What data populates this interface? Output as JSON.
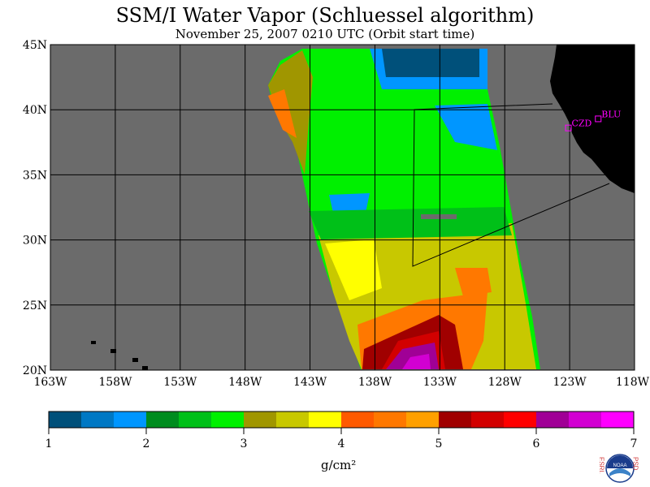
{
  "title": "SSM/I Water Vapor (Schluessel algorithm)",
  "subtitle": "November 25, 2007  0210 UTC  (Orbit start time)",
  "map": {
    "lon_range": [
      -163,
      -118
    ],
    "lat_range": [
      20,
      45
    ],
    "lat_labels": [
      "45N",
      "40N",
      "35N",
      "30N",
      "25N",
      "20N"
    ],
    "lon_labels": [
      "163W",
      "158W",
      "153W",
      "148W",
      "143W",
      "138W",
      "133W",
      "128W",
      "123W",
      "118W"
    ],
    "sites": [
      {
        "code": "CZD",
        "lon": -123.1,
        "lat": 38.6
      },
      {
        "code": "BLU",
        "lon": -120.8,
        "lat": 39.3
      }
    ],
    "colors": {
      "background": "#6b6b6b",
      "land": "#000000",
      "grid": "#000000",
      "site": "#ff00ff"
    }
  },
  "colorbar": {
    "colors": [
      "#00507a",
      "#0078c4",
      "#0096ff",
      "#008c1e",
      "#00c018",
      "#00f000",
      "#a09600",
      "#c8c800",
      "#ffff00",
      "#ff5a00",
      "#ff7800",
      "#ffa000",
      "#a00000",
      "#d20000",
      "#ff0000",
      "#a00096",
      "#d200d2",
      "#ff00ff"
    ],
    "tick_labels": [
      "1",
      "2",
      "3",
      "4",
      "5",
      "6",
      "7"
    ],
    "units": "g/cm²"
  },
  "logo": {
    "left_text": "ESRL",
    "right_text": "PSD",
    "center_text": "NOAA"
  }
}
